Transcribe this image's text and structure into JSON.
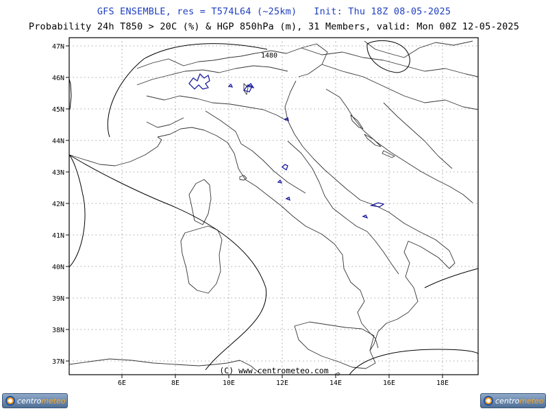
{
  "header": {
    "title": "GFS ENSEMBLE, res = T574L64 (~25km)   Init: Thu 18Z 08-05-2025",
    "subtitle": "Probability 24h T850 > 20C (%) & HGP 850hPa (m), 31 Members, valid: Mon 00Z 12-05-2025"
  },
  "map": {
    "lat_labels": [
      "47N",
      "46N",
      "45N",
      "44N",
      "43N",
      "42N",
      "41N",
      "40N",
      "39N",
      "38N",
      "37N"
    ],
    "lon_labels": [
      "6E",
      "8E",
      "10E",
      "12E",
      "14E",
      "16E",
      "18E"
    ],
    "contour_label": "1480",
    "copyright": "(C) www.centrometeo.com",
    "colors": {
      "coast": "#333333",
      "contour": "#000000",
      "probability": "#1a1a9e",
      "grid": "#555555"
    }
  },
  "logos": {
    "left": {
      "brand_a": "centro",
      "brand_b": "meteo"
    },
    "right": {
      "brand_a": "centro",
      "brand_b": "meteo"
    }
  }
}
